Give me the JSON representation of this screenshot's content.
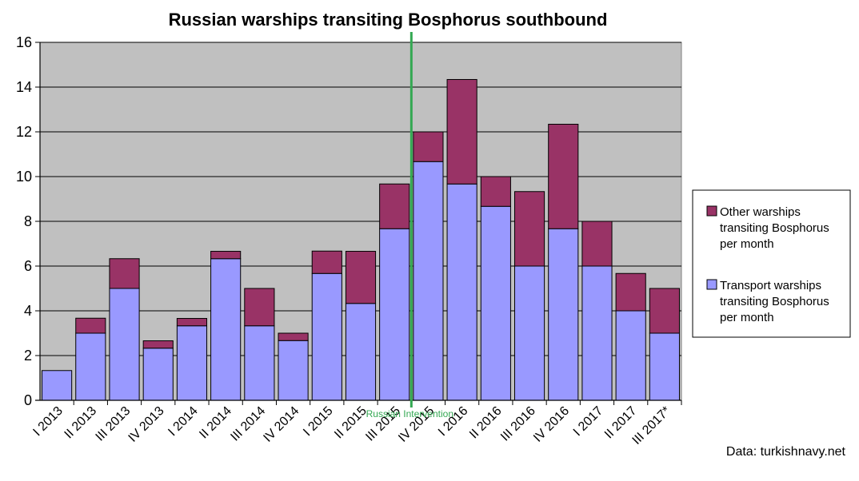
{
  "chart_data": {
    "type": "bar",
    "stacked": true,
    "title": "Russian warships transiting Bosphorus southbound",
    "categories": [
      "I 2013",
      "II 2013",
      "III 2013",
      "IV 2013",
      "I 2014",
      "II 2014",
      "III 2014",
      "IV 2014",
      "I 2015",
      "II 2015",
      "III 2015",
      "IV 2015",
      "I 2016",
      "II 2016",
      "III 2016",
      "IV 2016",
      "I 2017",
      "II 2017",
      "III 2017*"
    ],
    "series": [
      {
        "name": "Transport warships transiting Bosphorus per month",
        "color": "#9999ff",
        "values": [
          1.33,
          3.0,
          5.0,
          2.33,
          3.33,
          6.33,
          3.33,
          2.67,
          5.67,
          4.33,
          7.67,
          10.67,
          9.67,
          8.67,
          6.0,
          7.67,
          6.0,
          4.0,
          3.0
        ]
      },
      {
        "name": "Other warships transiting Bosphorus per month",
        "color": "#993366",
        "values": [
          0,
          0.67,
          1.33,
          0.33,
          0.33,
          0.33,
          1.67,
          0.33,
          1.0,
          2.33,
          2.0,
          1.33,
          4.67,
          1.33,
          3.33,
          4.67,
          2.0,
          1.67,
          2.0
        ]
      }
    ],
    "ylim": [
      0,
      16
    ],
    "yticks": [
      0,
      2,
      4,
      6,
      8,
      10,
      12,
      14,
      16
    ],
    "xlabel": "",
    "ylabel": "",
    "grid": true,
    "plot_background": "#c0c0c0",
    "legend": {
      "placement": "right",
      "entries": [
        {
          "series": 1,
          "lines": [
            "Other warships",
            "transiting Bosphorus",
            "per month"
          ]
        },
        {
          "series": 0,
          "lines": [
            "Transport warships",
            "transiting Bosphorus",
            "per month"
          ]
        }
      ]
    },
    "annotation": {
      "text": "Russian Intervention",
      "between": [
        "III 2015",
        "IV 2015"
      ],
      "color": "#33a852"
    },
    "source": "Data: turkishnavy.net"
  }
}
